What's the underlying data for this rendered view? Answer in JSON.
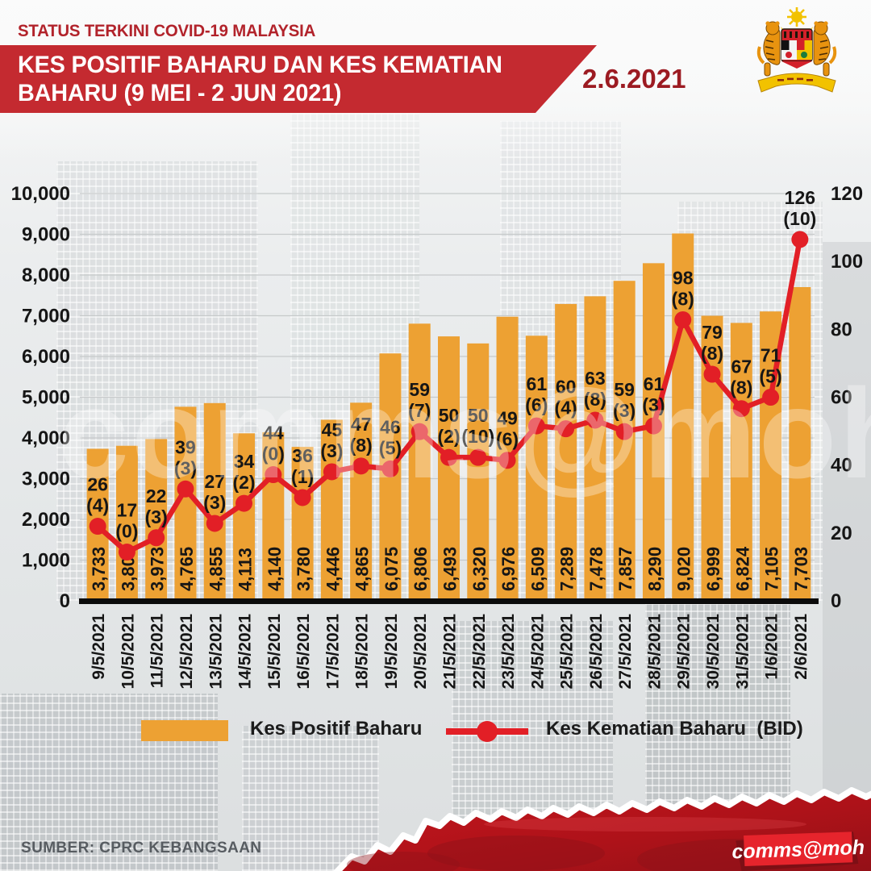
{
  "header": {
    "kicker": "STATUS TERKINI COVID-19 MALAYSIA",
    "title_line1": "KES POSITIF BAHARU DAN KES KEMATIAN",
    "title_line2": "BAHARU (9 MEI - 2 JUN 2021)",
    "date": "2.6.2021",
    "logo_icon": "malaysia-coat-of-arms"
  },
  "chart_data": {
    "type": "combo",
    "title": "Kes Positif Baharu dan Kes Kematian Baharu (9 Mei - 2 Jun 2021)",
    "categories": [
      "9/5/2021",
      "10/5/2021",
      "11/5/2021",
      "12/5/2021",
      "13/5/2021",
      "14/5/2021",
      "15/5/2021",
      "16/5/2021",
      "17/5/2021",
      "18/5/2021",
      "19/5/2021",
      "20/5/2021",
      "21/5/2021",
      "22/5/2021",
      "23/5/2021",
      "24/5/2021",
      "25/5/2021",
      "26/5/2021",
      "27/5/2021",
      "28/5/2021",
      "29/5/2021",
      "30/5/2021",
      "31/5/2021",
      "1/6/2021",
      "2/6/2021"
    ],
    "series": [
      {
        "name": "Kes Positif Baharu",
        "type": "bar",
        "axis": "left",
        "color": "#EDA133",
        "values": [
          3733,
          3807,
          3973,
          4765,
          4855,
          4113,
          4140,
          3780,
          4446,
          4865,
          6075,
          6806,
          6493,
          6320,
          6976,
          6509,
          7289,
          7478,
          7857,
          8290,
          9020,
          6999,
          6824,
          7105,
          7703
        ]
      },
      {
        "name": "Kes Kematian Baharu (BID)",
        "type": "line",
        "axis": "right",
        "color": "#E21F26",
        "values": [
          26,
          17,
          22,
          39,
          27,
          34,
          44,
          36,
          45,
          47,
          46,
          59,
          50,
          50,
          49,
          61,
          60,
          63,
          59,
          61,
          98,
          79,
          67,
          71,
          126
        ],
        "bid_values": [
          4,
          0,
          3,
          3,
          3,
          2,
          0,
          1,
          3,
          8,
          5,
          7,
          2,
          10,
          6,
          6,
          4,
          8,
          3,
          3,
          8,
          8,
          8,
          5,
          10
        ],
        "point_label_format": "deaths newline (bid)"
      }
    ],
    "axis_left": {
      "min": 0,
      "max": 10000,
      "step": 1000,
      "ticks": [
        "0",
        "1,000",
        "2,000",
        "3,000",
        "4,000",
        "5,000",
        "6,000",
        "7,000",
        "8,000",
        "9,000",
        "10,000"
      ]
    },
    "axis_right": {
      "min": 0,
      "max": 120,
      "step": 20,
      "ticks": [
        "0",
        "20",
        "40",
        "60",
        "80",
        "100",
        "120"
      ]
    },
    "grid": "horizontal-light",
    "legend_position": "bottom"
  },
  "legend": [
    {
      "label": "Kes Positif Baharu",
      "marker": "bar-swatch",
      "color": "#EDA133"
    },
    {
      "label": "Kes Kematian Baharu  (BID)",
      "marker": "line-dot",
      "color": "#E21F26"
    }
  ],
  "watermark": "comms@moh",
  "footer": {
    "source": "SUMBER: CPRC KEBANGSAAN",
    "badge": "comms@moh"
  }
}
